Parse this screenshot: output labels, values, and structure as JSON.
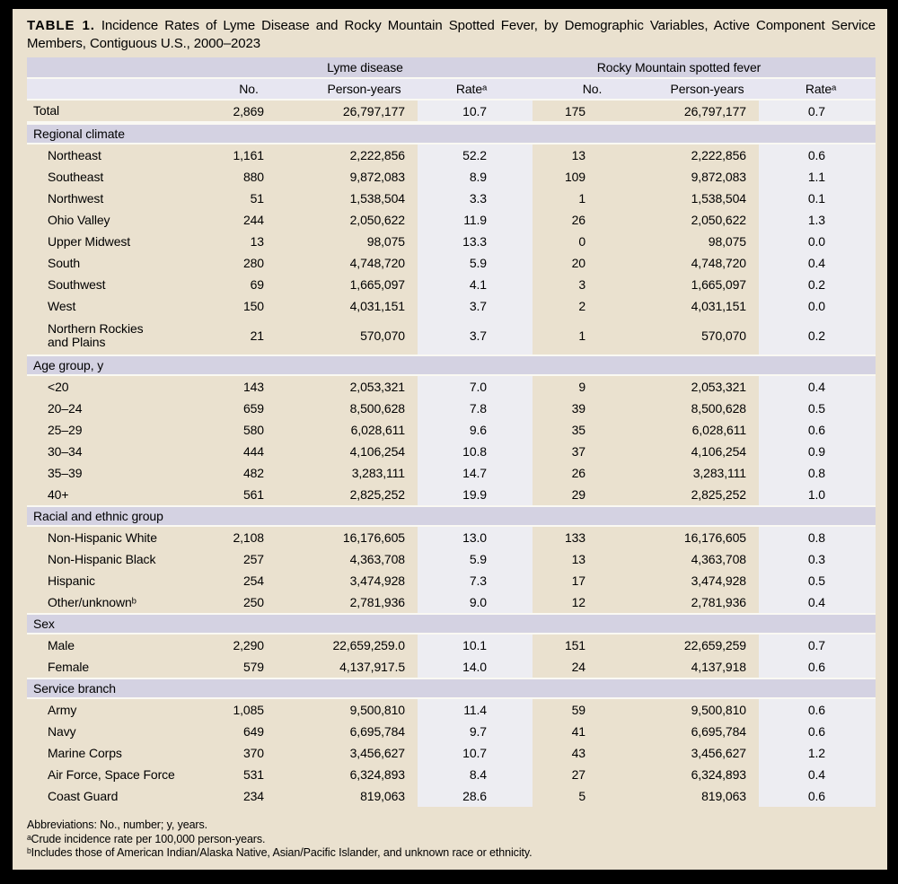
{
  "colors": {
    "page-bg": "#000000",
    "panel-bg": "#eae1cf",
    "band-dark": "#d4d2e2",
    "band-light": "#e7e6f1",
    "rate-col-bg": "#ededf2",
    "separator": "#faf9f3",
    "text": "#000000"
  },
  "chart_data": {
    "type": "table",
    "title_label": "TABLE 1.",
    "title_text": "Incidence Rates of Lyme Disease and Rocky Mountain Spotted Fever, by Demographic Variables, Active Component Service Members, Contiguous U.S., 2000–2023",
    "column_groups": [
      "Lyme disease",
      "Rocky Mountain spotted fever"
    ],
    "columns": [
      "No.",
      "Person-years",
      "Rateᵃ",
      "No.",
      "Person-years",
      "Rateᵃ"
    ],
    "total_row": {
      "label": "Total",
      "values": [
        "2,869",
        "26,797,177",
        "10.7",
        "175",
        "26,797,177",
        "0.7"
      ]
    },
    "sections": [
      {
        "header": "Regional climate",
        "rows": [
          {
            "label": "Northeast",
            "values": [
              "1,161",
              "2,222,856",
              "52.2",
              "13",
              "2,222,856",
              "0.6"
            ]
          },
          {
            "label": "Southeast",
            "values": [
              "880",
              "9,872,083",
              "8.9",
              "109",
              "9,872,083",
              "1.1"
            ]
          },
          {
            "label": "Northwest",
            "values": [
              "51",
              "1,538,504",
              "3.3",
              "1",
              "1,538,504",
              "0.1"
            ]
          },
          {
            "label": "Ohio Valley",
            "values": [
              "244",
              "2,050,622",
              "11.9",
              "26",
              "2,050,622",
              "1.3"
            ]
          },
          {
            "label": "Upper Midwest",
            "values": [
              "13",
              "98,075",
              "13.3",
              "0",
              "98,075",
              "0.0"
            ]
          },
          {
            "label": "South",
            "values": [
              "280",
              "4,748,720",
              "5.9",
              "20",
              "4,748,720",
              "0.4"
            ]
          },
          {
            "label": "Southwest",
            "values": [
              "69",
              "1,665,097",
              "4.1",
              "3",
              "1,665,097",
              "0.2"
            ]
          },
          {
            "label": "West",
            "values": [
              "150",
              "4,031,151",
              "3.7",
              "2",
              "4,031,151",
              "0.0"
            ]
          },
          {
            "label": "Northern Rockies and Plains",
            "two_line": true,
            "values": [
              "21",
              "570,070",
              "3.7",
              "1",
              "570,070",
              "0.2"
            ]
          }
        ]
      },
      {
        "header": "Age group, y",
        "rows": [
          {
            "label": "<20",
            "values": [
              "143",
              "2,053,321",
              "7.0",
              "9",
              "2,053,321",
              "0.4"
            ]
          },
          {
            "label": "20–24",
            "values": [
              "659",
              "8,500,628",
              "7.8",
              "39",
              "8,500,628",
              "0.5"
            ]
          },
          {
            "label": "25–29",
            "values": [
              "580",
              "6,028,611",
              "9.6",
              "35",
              "6,028,611",
              "0.6"
            ]
          },
          {
            "label": "30–34",
            "values": [
              "444",
              "4,106,254",
              "10.8",
              "37",
              "4,106,254",
              "0.9"
            ]
          },
          {
            "label": "35–39",
            "values": [
              "482",
              "3,283,111",
              "14.7",
              "26",
              "3,283,111",
              "0.8"
            ]
          },
          {
            "label": "40+",
            "values": [
              "561",
              "2,825,252",
              "19.9",
              "29",
              "2,825,252",
              "1.0"
            ]
          }
        ]
      },
      {
        "header": "Racial and ethnic group",
        "rows": [
          {
            "label": "Non-Hispanic White",
            "values": [
              "2,108",
              "16,176,605",
              "13.0",
              "133",
              "16,176,605",
              "0.8"
            ]
          },
          {
            "label": "Non-Hispanic Black",
            "values": [
              "257",
              "4,363,708",
              "5.9",
              "13",
              "4,363,708",
              "0.3"
            ]
          },
          {
            "label": "Hispanic",
            "values": [
              "254",
              "3,474,928",
              "7.3",
              "17",
              "3,474,928",
              "0.5"
            ]
          },
          {
            "label": "Other/unknownᵇ",
            "values": [
              "250",
              "2,781,936",
              "9.0",
              "12",
              "2,781,936",
              "0.4"
            ]
          }
        ]
      },
      {
        "header": "Sex",
        "rows": [
          {
            "label": "Male",
            "values": [
              "2,290",
              "22,659,259.0",
              "10.1",
              "151",
              "22,659,259",
              "0.7"
            ]
          },
          {
            "label": "Female",
            "values": [
              "579",
              "4,137,917.5",
              "14.0",
              "24",
              "4,137,918",
              "0.6"
            ]
          }
        ]
      },
      {
        "header": "Service branch",
        "rows": [
          {
            "label": "Army",
            "values": [
              "1,085",
              "9,500,810",
              "11.4",
              "59",
              "9,500,810",
              "0.6"
            ]
          },
          {
            "label": "Navy",
            "values": [
              "649",
              "6,695,784",
              "9.7",
              "41",
              "6,695,784",
              "0.6"
            ]
          },
          {
            "label": "Marine Corps",
            "values": [
              "370",
              "3,456,627",
              "10.7",
              "43",
              "3,456,627",
              "1.2"
            ]
          },
          {
            "label": "Air Force, Space Force",
            "values": [
              "531",
              "6,324,893",
              "8.4",
              "27",
              "6,324,893",
              "0.4"
            ]
          },
          {
            "label": "Coast Guard",
            "values": [
              "234",
              "819,063",
              "28.6",
              "5",
              "819,063",
              "0.6"
            ]
          }
        ]
      }
    ],
    "footnotes": [
      "Abbreviations: No., number; y, years.",
      "ᵃCrude incidence rate per 100,000 person-years.",
      "ᵇIncludes those of American Indian/Alaska Native, Asian/Pacific Islander, and unknown race or ethnicity."
    ]
  }
}
